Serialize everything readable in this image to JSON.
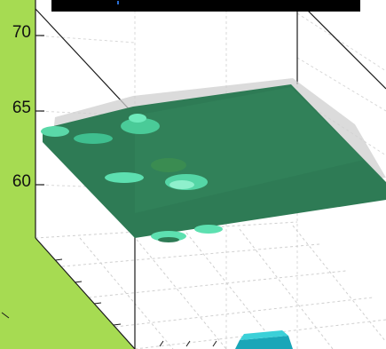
{
  "chart_data": {
    "type": "surface",
    "title": "",
    "xlabel": "",
    "ylabel": "",
    "zlabel": "",
    "zlim": [
      55,
      72
    ],
    "z_ticks": [
      {
        "value": 70,
        "label": "70"
      },
      {
        "value": 65,
        "label": "65"
      },
      {
        "value": 60,
        "label": "60"
      }
    ],
    "grid": true,
    "surface_level": 63.5,
    "colors": {
      "figure_background": "#a6db52",
      "axes_background": "#ffffff",
      "surface": "#2f7a52",
      "highlight": "#5de0b0",
      "bottom_patch": "#1aa6b8",
      "title_bar": "#000000"
    }
  }
}
